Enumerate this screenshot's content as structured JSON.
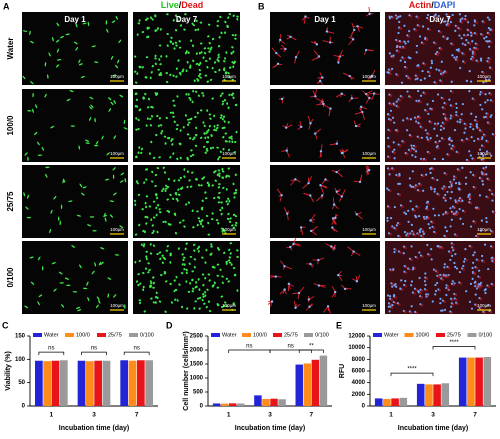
{
  "panels": {
    "A": {
      "label": "A",
      "title": [
        "Live",
        "/",
        "Dead"
      ],
      "columns": [
        "Day 1",
        "Day 7"
      ],
      "rows": [
        "Water",
        "100/0",
        "25/75",
        "0/100"
      ]
    },
    "B": {
      "label": "B",
      "title": [
        "Actin",
        "/",
        "DAPI"
      ],
      "columns": [
        "Day 1",
        "Day 7"
      ]
    }
  },
  "scale_bar": "100μm",
  "chart_data": [
    {
      "type": "bar",
      "panel": "C",
      "ylabel": "Viability (%)",
      "xlabel": "Incubation time (day)",
      "categories": [
        "1",
        "3",
        "7"
      ],
      "series": [
        {
          "name": "Water",
          "color": "#2323d8",
          "values": [
            97,
            97,
            98
          ]
        },
        {
          "name": "100/0",
          "color": "#ff8c1a",
          "values": [
            96,
            96,
            97
          ]
        },
        {
          "name": "25/75",
          "color": "#e8141a",
          "values": [
            97,
            97,
            98
          ]
        },
        {
          "name": "0/100",
          "color": "#9a9a9a",
          "values": [
            98,
            97,
            98
          ]
        }
      ],
      "ylim": [
        0,
        150
      ],
      "yticks": [
        0,
        50,
        100,
        150
      ],
      "annotations": [
        "ns",
        "ns",
        "ns"
      ]
    },
    {
      "type": "bar",
      "panel": "D",
      "ylabel": "Cell number (cells/mm²)",
      "xlabel": "Incubation time (day)",
      "categories": [
        "1",
        "3",
        "7"
      ],
      "series": [
        {
          "name": "Water",
          "color": "#2323d8",
          "values": [
            90,
            380,
            1480
          ]
        },
        {
          "name": "100/0",
          "color": "#ff8c1a",
          "values": [
            85,
            250,
            1520
          ]
        },
        {
          "name": "25/75",
          "color": "#e8141a",
          "values": [
            95,
            260,
            1650
          ]
        },
        {
          "name": "0/100",
          "color": "#9a9a9a",
          "values": [
            90,
            240,
            1800
          ]
        }
      ],
      "ylim": [
        0,
        2500
      ],
      "yticks": [
        0,
        500,
        1000,
        1500,
        2000,
        2500
      ],
      "annotations": [
        "ns",
        "ns",
        "**"
      ]
    },
    {
      "type": "bar",
      "panel": "E",
      "ylabel": "RFU",
      "xlabel": "Incubation time (day)",
      "categories": [
        "1",
        "3",
        "7"
      ],
      "series": [
        {
          "name": "Water",
          "color": "#2323d8",
          "values": [
            1300,
            3800,
            8300
          ]
        },
        {
          "name": "100/0",
          "color": "#ff8c1a",
          "values": [
            1200,
            3700,
            8300
          ]
        },
        {
          "name": "25/75",
          "color": "#e8141a",
          "values": [
            1300,
            3700,
            8300
          ]
        },
        {
          "name": "0/100",
          "color": "#9a9a9a",
          "values": [
            1400,
            3900,
            8400
          ]
        }
      ],
      "ylim": [
        0,
        12000
      ],
      "yticks": [
        0,
        2000,
        4000,
        6000,
        8000,
        10000,
        12000
      ],
      "annotations": [
        "****",
        "****"
      ]
    }
  ]
}
